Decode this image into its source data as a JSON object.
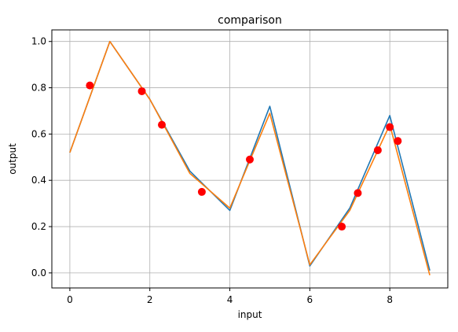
{
  "chart_data": {
    "type": "line",
    "title": "comparison",
    "xlabel": "input",
    "ylabel": "output",
    "xlim": [
      -0.45,
      9.45
    ],
    "ylim": [
      -0.065,
      1.05
    ],
    "xticks": [
      0,
      2,
      4,
      6,
      8
    ],
    "yticks": [
      0.0,
      0.2,
      0.4,
      0.6,
      0.8,
      1.0
    ],
    "xtick_labels": [
      "0",
      "2",
      "4",
      "6",
      "8"
    ],
    "ytick_labels": [
      "0.0",
      "0.2",
      "0.4",
      "0.6",
      "0.8",
      "1.0"
    ],
    "grid": true,
    "legend": null,
    "series": [
      {
        "type": "line",
        "color": "#1f77b4",
        "x": [
          0,
          1,
          2,
          3,
          4,
          5,
          6,
          7,
          8,
          9
        ],
        "y": [
          0.52,
          1.0,
          0.75,
          0.44,
          0.27,
          0.72,
          0.03,
          0.28,
          0.68,
          0.01
        ]
      },
      {
        "type": "line",
        "color": "#ff7f0e",
        "x": [
          0,
          1,
          2,
          3,
          4,
          5,
          6,
          7,
          8,
          9
        ],
        "y": [
          0.52,
          1.0,
          0.75,
          0.43,
          0.28,
          0.69,
          0.035,
          0.27,
          0.64,
          -0.01
        ]
      },
      {
        "type": "scatter",
        "color": "#ff0000",
        "x": [
          0.5,
          1.8,
          2.3,
          3.3,
          4.5,
          6.8,
          7.2,
          7.7,
          8.0,
          8.2
        ],
        "y": [
          0.81,
          0.785,
          0.64,
          0.35,
          0.49,
          0.2,
          0.345,
          0.53,
          0.63,
          0.57
        ]
      }
    ]
  }
}
